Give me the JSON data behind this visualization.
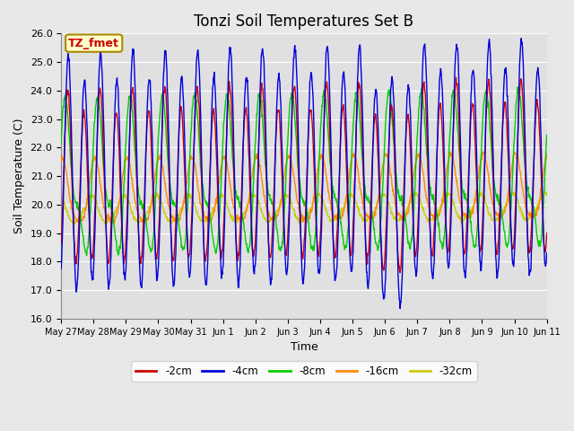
{
  "title": "Tonzi Soil Temperatures Set B",
  "xlabel": "Time",
  "ylabel": "Soil Temperature (C)",
  "ylim": [
    16.0,
    26.0
  ],
  "yticks": [
    16.0,
    17.0,
    18.0,
    19.0,
    20.0,
    21.0,
    22.0,
    23.0,
    24.0,
    25.0,
    26.0
  ],
  "xtick_labels": [
    "May 27",
    "May 28",
    "May 29",
    "May 30",
    "May 31",
    "Jun 1",
    "Jun 2",
    "Jun 3",
    "Jun 4",
    "Jun 5",
    "Jun 6",
    "Jun 7",
    "Jun 8",
    "Jun 9",
    "Jun 10",
    "Jun 11"
  ],
  "series": {
    "neg2cm": {
      "color": "#cc0000",
      "label": "-2cm",
      "lw": 1.0
    },
    "neg4cm": {
      "color": "#0000dd",
      "label": "-4cm",
      "lw": 1.0
    },
    "neg8cm": {
      "color": "#00cc00",
      "label": "-8cm",
      "lw": 1.0
    },
    "neg16cm": {
      "color": "#ff8800",
      "label": "-16cm",
      "lw": 1.0
    },
    "neg32cm": {
      "color": "#cccc00",
      "label": "-32cm",
      "lw": 1.0
    }
  },
  "annotation_text": "TZ_fmet",
  "annotation_color": "#cc0000",
  "annotation_bg": "#ffffcc",
  "annotation_edge": "#aa8800",
  "plot_bg": "#e0e0e0",
  "fig_bg": "#e8e8e8",
  "grid_color": "#ffffff",
  "title_fontsize": 12,
  "label_fontsize": 9,
  "tick_fontsize": 8,
  "n_days": 15,
  "n_pts": 1200
}
